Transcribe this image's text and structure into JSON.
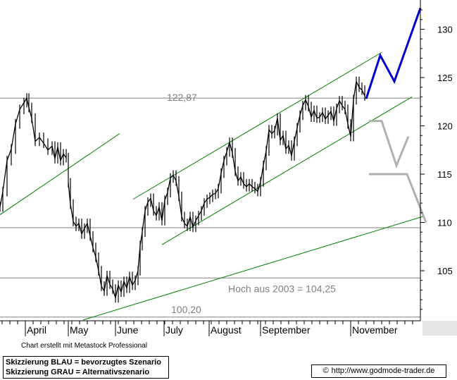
{
  "chart_data": {
    "type": "line",
    "subtype": "candlestick-ohlc",
    "y_axis": {
      "position": "right",
      "range": [
        99.5,
        132.5
      ],
      "ticks": [
        105,
        110,
        115,
        120,
        125,
        130
      ]
    },
    "x_axis": {
      "months": [
        "April",
        "May",
        "June",
        "July",
        "August",
        "September",
        "November"
      ]
    },
    "price_series_color": "#000000",
    "price_polyline": [
      [
        0,
        111.6
      ],
      [
        4,
        113.2
      ],
      [
        10,
        116.4
      ],
      [
        16,
        117.6
      ],
      [
        22,
        120.2
      ],
      [
        28,
        121.7
      ],
      [
        34,
        122.4
      ],
      [
        38,
        122.87
      ],
      [
        41,
        121.9
      ],
      [
        45,
        120.8
      ],
      [
        50,
        118.4
      ],
      [
        56,
        118.8
      ],
      [
        62,
        118.2
      ],
      [
        68,
        117.5
      ],
      [
        74,
        117.9
      ],
      [
        78,
        116.6
      ],
      [
        82,
        117.8
      ],
      [
        86,
        116.4
      ],
      [
        90,
        117.1
      ],
      [
        94,
        116.7
      ],
      [
        97,
        114.1
      ],
      [
        100,
        111.9
      ],
      [
        104,
        110.1
      ],
      [
        108,
        109.6
      ],
      [
        112,
        109.9
      ],
      [
        116,
        108.8
      ],
      [
        120,
        109.4
      ],
      [
        124,
        109.9
      ],
      [
        128,
        108.6
      ],
      [
        132,
        107.4
      ],
      [
        136,
        106.4
      ],
      [
        140,
        105.0
      ],
      [
        144,
        103.4
      ],
      [
        148,
        102.9
      ],
      [
        152,
        104.5
      ],
      [
        156,
        103.6
      ],
      [
        160,
        103.1
      ],
      [
        164,
        102.2
      ],
      [
        168,
        103.5
      ],
      [
        172,
        102.8
      ],
      [
        176,
        103.9
      ],
      [
        180,
        103.2
      ],
      [
        184,
        104.4
      ],
      [
        188,
        103.5
      ],
      [
        192,
        104.0
      ],
      [
        196,
        105.0
      ],
      [
        199,
        107.6
      ],
      [
        202,
        109.0
      ],
      [
        206,
        111.2
      ],
      [
        210,
        112.1
      ],
      [
        214,
        112.5
      ],
      [
        218,
        111.2
      ],
      [
        222,
        110.7
      ],
      [
        226,
        111.6
      ],
      [
        230,
        110.2
      ],
      [
        234,
        112.3
      ],
      [
        238,
        113.1
      ],
      [
        242,
        114.6
      ],
      [
        246,
        114.9
      ],
      [
        250,
        114.3
      ],
      [
        254,
        112.7
      ],
      [
        258,
        110.6
      ],
      [
        262,
        109.9
      ],
      [
        266,
        109.6
      ],
      [
        270,
        110.6
      ],
      [
        274,
        109.5
      ],
      [
        278,
        110.2
      ],
      [
        282,
        110.7
      ],
      [
        286,
        111.2
      ],
      [
        290,
        112.0
      ],
      [
        294,
        112.4
      ],
      [
        298,
        112.6
      ],
      [
        302,
        112.9
      ],
      [
        306,
        113.0
      ],
      [
        310,
        113.5
      ],
      [
        314,
        115.1
      ],
      [
        318,
        116.4
      ],
      [
        322,
        117.3
      ],
      [
        326,
        118.3
      ],
      [
        330,
        117.2
      ],
      [
        334,
        115.3
      ],
      [
        338,
        114.3
      ],
      [
        342,
        114.7
      ],
      [
        346,
        114.0
      ],
      [
        350,
        113.7
      ],
      [
        354,
        114.0
      ],
      [
        358,
        113.7
      ],
      [
        362,
        113.5
      ],
      [
        366,
        113.2
      ],
      [
        370,
        114.2
      ],
      [
        374,
        115.9
      ],
      [
        378,
        117.4
      ],
      [
        382,
        119.6
      ],
      [
        386,
        119.2
      ],
      [
        390,
        119.5
      ],
      [
        394,
        120.8
      ],
      [
        398,
        118.5
      ],
      [
        402,
        119.0
      ],
      [
        406,
        117.6
      ],
      [
        410,
        118.0
      ],
      [
        414,
        116.9
      ],
      [
        418,
        118.4
      ],
      [
        422,
        119.8
      ],
      [
        426,
        121.1
      ],
      [
        430,
        122.1
      ],
      [
        434,
        122.7
      ],
      [
        438,
        122.0
      ],
      [
        442,
        120.9
      ],
      [
        446,
        121.6
      ],
      [
        450,
        120.8
      ],
      [
        454,
        120.9
      ],
      [
        458,
        121.4
      ],
      [
        462,
        120.7
      ],
      [
        466,
        121.1
      ],
      [
        470,
        121.5
      ],
      [
        474,
        120.5
      ],
      [
        478,
        121.8
      ],
      [
        482,
        122.6
      ],
      [
        486,
        122.1
      ],
      [
        490,
        121.7
      ],
      [
        494,
        120.2
      ],
      [
        498,
        118.9
      ],
      [
        502,
        122.7
      ],
      [
        506,
        124.6
      ],
      [
        510,
        124.0
      ],
      [
        514,
        123.7
      ],
      [
        518,
        123.1
      ]
    ],
    "horizontal_levels": [
      {
        "value": 122.87,
        "label": "122,87"
      },
      {
        "value": 109.45,
        "label": ""
      },
      {
        "value": 104.25,
        "label": "Hoch aus 2003  =  104,25"
      },
      {
        "value": 100.2,
        "label": "100,20"
      }
    ],
    "trendlines": {
      "color": "#008000",
      "lines": [
        {
          "x": [
            0,
            170
          ],
          "y": [
            110.8,
            119.2
          ]
        },
        {
          "x": [
            189,
            542
          ],
          "y": [
            112.4,
            127.6
          ]
        },
        {
          "x": [
            230,
            585
          ],
          "y": [
            107.7,
            123.0
          ]
        },
        {
          "x": [
            118,
            600
          ],
          "y": [
            99.9,
            110.6
          ]
        }
      ]
    },
    "scenarios": [
      {
        "name": "Skizzierung BLAU = bevorzugtes Szenario",
        "color": "#0000cc",
        "x": [
          520,
          540,
          560,
          597
        ],
        "y": [
          122.8,
          127.3,
          124.6,
          132.2
        ]
      },
      {
        "name": "Skizzierung GRAU = Alternativszenario",
        "color": "#b0b0b0",
        "segments": [
          {
            "x": [
              524,
              542,
              563,
              580
            ],
            "y": [
              120.5,
              120.5,
              115.9,
              118.9
            ]
          },
          {
            "x": [
              524,
              578,
              605
            ],
            "y": [
              115.0,
              115.0,
              110.0
            ]
          }
        ]
      }
    ]
  },
  "credit_text": "Chart erstellt mit Metastock Professional",
  "legend": {
    "line1": "Skizzierung BLAU = bevorzugtes Szenario",
    "line2": "Skizzierung GRAU = Alternativszenario"
  },
  "source": {
    "copyright_symbol": "©",
    "url": "http://www.godmode-trader.de"
  }
}
